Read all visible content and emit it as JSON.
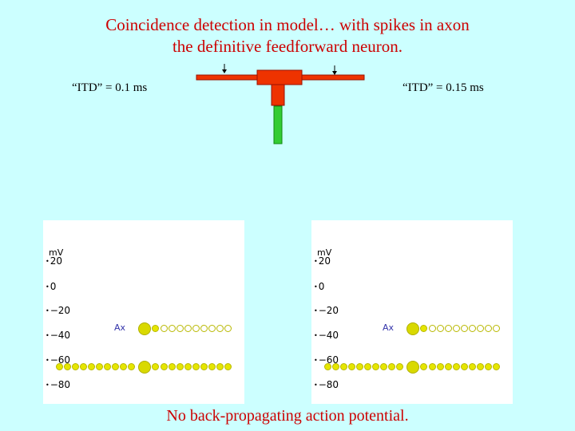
{
  "title": {
    "line1": "Coincidence detection in model… with spikes in axon",
    "line2": "the definitive feedforward neuron."
  },
  "conditions": {
    "left_label": "“ITD” = 0.1 ms",
    "right_label": "“ITD” = 0.15 ms"
  },
  "neuron_diagram": {
    "dendrite_color": "#ee3300",
    "axon_color": "#33cc33",
    "input_arrows": 2
  },
  "panels": [
    {
      "y_unit": "mV",
      "y_ticks": [
        "20",
        "0",
        "−20",
        "−40",
        "−60",
        "−80"
      ],
      "compartment_label": "Ax",
      "upper_row_state": "resting",
      "lower_row_state": "depolarized"
    },
    {
      "y_unit": "mV",
      "y_ticks": [
        "20",
        "0",
        "−20",
        "−40",
        "−60",
        "−80"
      ],
      "compartment_label": "Ax",
      "upper_row_state": "resting",
      "lower_row_state": "depolarized"
    }
  ],
  "footer": "No back-propagating action potential.",
  "colors": {
    "background": "#ccffff",
    "title_text": "#cc0000",
    "compartment_active": "#e6e600"
  }
}
